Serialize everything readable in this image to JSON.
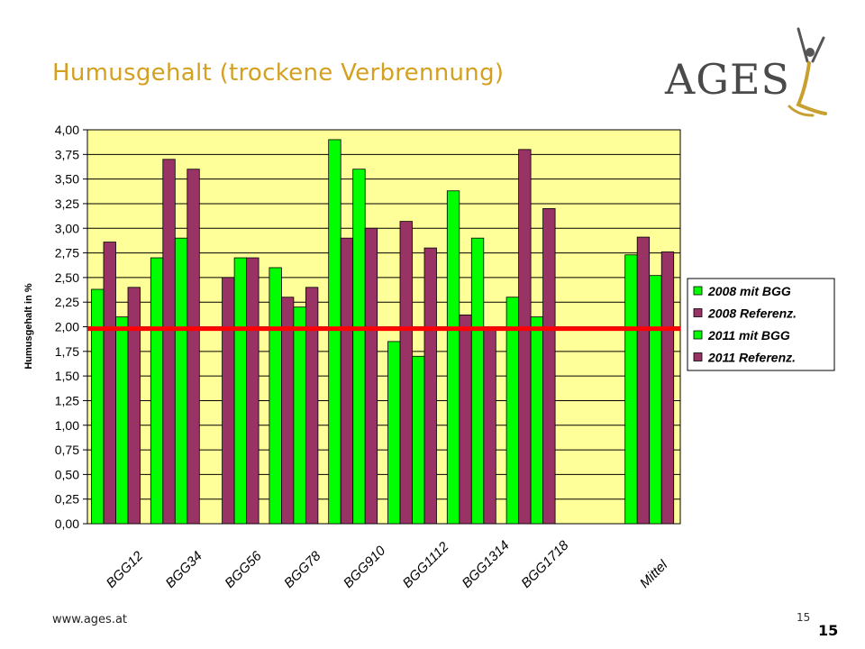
{
  "slide": {
    "title": "Humusgehalt (trockene Verbrennung)",
    "logo_text": "AGES",
    "footer_url": "www.ages.at",
    "page_small": "15",
    "page_big": "15"
  },
  "colors": {
    "title": "#d4a020",
    "plot_bg": "#ffff99",
    "green": "#00ff00",
    "maroon": "#993366",
    "reference_line": "#ff0000",
    "logo_text": "#4a4a4a",
    "logo_figure": "#c8a030"
  },
  "chart_data": {
    "type": "bar",
    "ylabel": "Humusgehalt in %",
    "ylim": [
      0,
      4
    ],
    "yticks": [
      "0,00",
      "0,25",
      "0,50",
      "0,75",
      "1,00",
      "1,25",
      "1,50",
      "1,75",
      "2,00",
      "2,25",
      "2,50",
      "2,75",
      "3,00",
      "3,25",
      "3,50",
      "3,75",
      "4,00"
    ],
    "grid": true,
    "legend_position": "right",
    "categories": [
      "BGG12",
      "BGG34",
      "BGG56",
      "BGG78",
      "BGG910",
      "BGG1112",
      "BGG1314",
      "BGG1718",
      "",
      "Mittel"
    ],
    "series": [
      {
        "name": "2008 mit BGG",
        "color": "#00ff00",
        "values": [
          2.38,
          2.7,
          null,
          2.6,
          3.9,
          1.85,
          3.38,
          2.3,
          null,
          2.73
        ]
      },
      {
        "name": "2008 Referenz.",
        "color": "#993366",
        "values": [
          2.86,
          3.7,
          2.5,
          2.3,
          2.9,
          3.07,
          2.12,
          3.8,
          null,
          2.91
        ]
      },
      {
        "name": "2011 mit BGG",
        "color": "#00ff00",
        "values": [
          2.1,
          2.9,
          2.7,
          2.2,
          3.6,
          1.7,
          2.9,
          2.1,
          null,
          2.52
        ]
      },
      {
        "name": "2011 Referenz.",
        "color": "#993366",
        "values": [
          2.4,
          3.6,
          2.7,
          2.4,
          3.0,
          2.8,
          2.0,
          3.2,
          null,
          2.76
        ]
      }
    ],
    "reference_line_value": 1.98
  }
}
